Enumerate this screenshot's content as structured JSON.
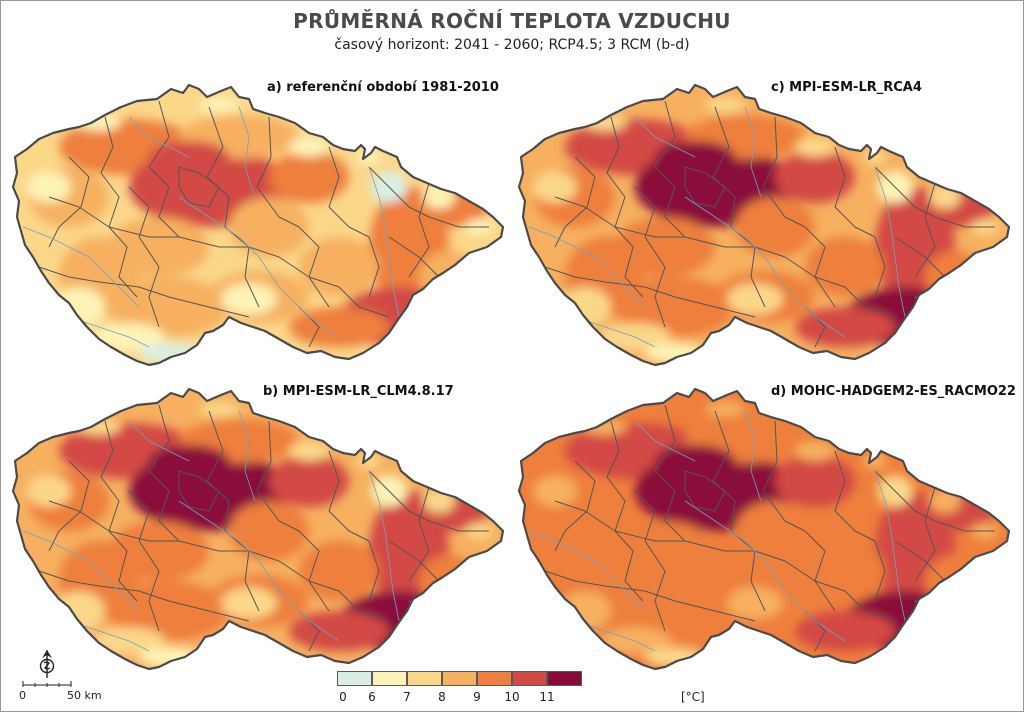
{
  "title": "PRŮMĚRNÁ ROČNÍ TEPLOTA VZDUCHU",
  "subtitle": "časový horizont: 2041 - 2060; RCP4.5; 3 RCM (b-d)",
  "panels": [
    {
      "id": "a",
      "label": "a) referenční období 1981-2010",
      "warmth": 0
    },
    {
      "id": "b",
      "label": "b) MPI-ESM-LR_CLM4.8.17",
      "warmth": 1
    },
    {
      "id": "c",
      "label": "c) MPI-ESM-LR_RCA4",
      "warmth": 1.3
    },
    {
      "id": "d",
      "label": "d) MOHC-HADGEM2-ES_RACMO22",
      "warmth": 2.4
    }
  ],
  "legend": {
    "ticks": [
      "0",
      "6",
      "7",
      "8",
      "9",
      "10",
      "11"
    ],
    "colors": [
      "#d9efe4",
      "#fdf3b6",
      "#fbd78a",
      "#f6b060",
      "#ee7f3c",
      "#d34a44",
      "#8a0a3a"
    ],
    "unit": "[°C]"
  },
  "scale": {
    "start": "0",
    "end": "50 km"
  },
  "colors": {
    "border": "#4a4a4a",
    "district_lines": "#555555",
    "rivers": "#6fa3c4"
  }
}
